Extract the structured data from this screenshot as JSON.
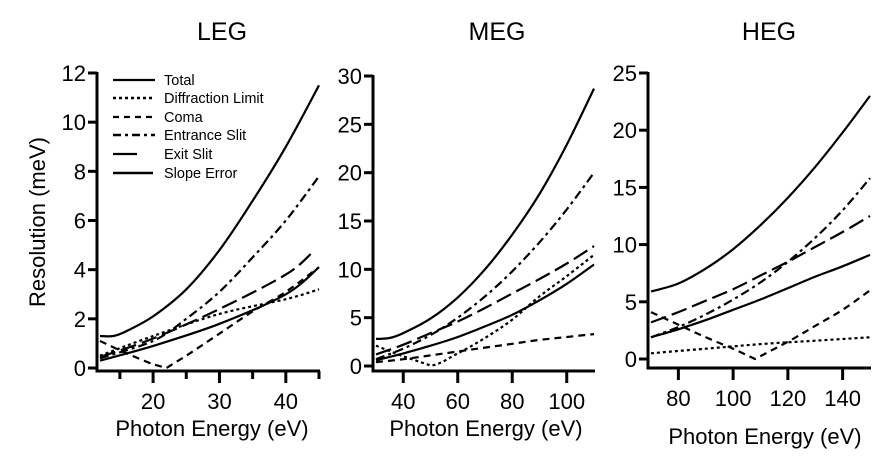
{
  "chart_data": [
    {
      "type": "line",
      "title": "LEG",
      "xlabel": "Photon Energy (eV)",
      "ylabel": "Resolution (meV)",
      "xlim": [
        12,
        45
      ],
      "ylim": [
        0,
        12
      ],
      "xticks": [
        20,
        30,
        40
      ],
      "xminor": [
        15,
        25,
        35,
        45
      ],
      "yticks": [
        0,
        2,
        4,
        6,
        8,
        10,
        12
      ],
      "legend": "top-left",
      "series": [
        {
          "name": "Total",
          "style": "solid",
          "x": [
            12,
            14,
            16,
            20,
            25,
            30,
            35,
            40,
            45
          ],
          "y": [
            1.3,
            1.3,
            1.5,
            2.1,
            3.2,
            4.8,
            6.8,
            9.0,
            11.5
          ]
        },
        {
          "name": "Diffraction Limit",
          "style": "dotted",
          "x": [
            12,
            20,
            30,
            40,
            45
          ],
          "y": [
            0.5,
            1.3,
            2.2,
            2.8,
            3.2
          ]
        },
        {
          "name": "Coma",
          "style": "dashed",
          "x": [
            12,
            16,
            20,
            22,
            25,
            30,
            35,
            40,
            45
          ],
          "y": [
            1.1,
            0.6,
            0.15,
            0.0,
            0.5,
            1.4,
            2.3,
            3.1,
            4.1
          ]
        },
        {
          "name": "Entrance Slit",
          "style": "dashdot",
          "x": [
            12,
            20,
            25,
            30,
            35,
            40,
            45
          ],
          "y": [
            0.4,
            1.1,
            2.0,
            3.1,
            4.5,
            6.0,
            7.8
          ]
        },
        {
          "name": "Exit Slit",
          "style": "longdash",
          "x": [
            12,
            20,
            30,
            40,
            44
          ],
          "y": [
            0.45,
            1.2,
            2.4,
            3.8,
            4.7
          ]
        },
        {
          "name": "Slope Error",
          "style": "solid-thin",
          "x": [
            12,
            20,
            30,
            40,
            45
          ],
          "y": [
            0.3,
            0.9,
            1.8,
            3.0,
            4.1
          ]
        }
      ]
    },
    {
      "type": "line",
      "title": "MEG",
      "xlabel": "Photon Energy (eV)",
      "ylabel": "",
      "xlim": [
        30,
        110
      ],
      "ylim": [
        0,
        30
      ],
      "xticks": [
        40,
        60,
        80,
        100
      ],
      "yticks": [
        0,
        5,
        10,
        15,
        20,
        25,
        30
      ],
      "series": [
        {
          "name": "Total",
          "style": "solid",
          "x": [
            30,
            35,
            40,
            50,
            60,
            70,
            80,
            90,
            100,
            110
          ],
          "y": [
            2.8,
            2.9,
            3.4,
            4.9,
            7.1,
            10.0,
            13.6,
            17.8,
            22.9,
            28.7
          ]
        },
        {
          "name": "Diffraction Limit",
          "style": "dotted",
          "x": [
            30,
            40,
            50,
            60,
            70,
            80,
            90,
            100,
            110
          ],
          "y": [
            2.1,
            1.0,
            0.05,
            1.3,
            2.9,
            4.8,
            7.2,
            9.3,
            11.5
          ]
        },
        {
          "name": "Coma",
          "style": "dashed",
          "x": [
            30,
            40,
            50,
            60,
            70,
            80,
            90,
            100,
            110
          ],
          "y": [
            0.4,
            0.7,
            1.1,
            1.5,
            1.9,
            2.3,
            2.7,
            3.0,
            3.3
          ]
        },
        {
          "name": "Entrance Slit",
          "style": "dashdot",
          "x": [
            30,
            40,
            50,
            60,
            70,
            80,
            90,
            100,
            110
          ],
          "y": [
            0.7,
            1.8,
            3.2,
            5.0,
            7.2,
            9.8,
            12.8,
            16.2,
            20.0
          ]
        },
        {
          "name": "Exit Slit",
          "style": "longdash",
          "x": [
            30,
            40,
            50,
            60,
            70,
            80,
            90,
            100,
            110
          ],
          "y": [
            1.2,
            2.2,
            3.4,
            4.6,
            6.0,
            7.5,
            9.0,
            10.6,
            12.4
          ]
        },
        {
          "name": "Slope Error",
          "style": "solid-thin",
          "x": [
            30,
            40,
            50,
            60,
            70,
            80,
            90,
            100,
            110
          ],
          "y": [
            0.6,
            1.3,
            2.1,
            3.0,
            4.1,
            5.3,
            6.8,
            8.5,
            10.5
          ]
        }
      ]
    },
    {
      "type": "line",
      "title": "HEG",
      "xlabel": "Photon Energy (eV)",
      "ylabel": "",
      "xlim": [
        70,
        150
      ],
      "ylim": [
        0,
        25
      ],
      "xticks": [
        80,
        100,
        120,
        140
      ],
      "yticks": [
        0,
        5,
        10,
        15,
        20,
        25
      ],
      "series": [
        {
          "name": "Total",
          "style": "solid",
          "x": [
            70,
            80,
            90,
            100,
            110,
            120,
            130,
            140,
            150
          ],
          "y": [
            5.9,
            6.6,
            7.9,
            9.6,
            11.7,
            14.1,
            16.8,
            19.8,
            23.0
          ]
        },
        {
          "name": "Diffraction Limit",
          "style": "dotted",
          "x": [
            70,
            90,
            110,
            130,
            150
          ],
          "y": [
            0.5,
            0.9,
            1.3,
            1.6,
            1.9
          ]
        },
        {
          "name": "Coma",
          "style": "dashed",
          "x": [
            70,
            80,
            90,
            100,
            108,
            120,
            130,
            140,
            150
          ],
          "y": [
            4.1,
            3.0,
            1.9,
            0.9,
            0.0,
            1.5,
            2.9,
            4.3,
            6.0
          ]
        },
        {
          "name": "Entrance Slit",
          "style": "dashdot",
          "x": [
            70,
            80,
            90,
            100,
            110,
            120,
            130,
            140,
            150
          ],
          "y": [
            1.9,
            2.8,
            3.9,
            5.2,
            6.7,
            8.5,
            10.6,
            13.0,
            15.8
          ]
        },
        {
          "name": "Exit Slit",
          "style": "longdash",
          "x": [
            70,
            80,
            90,
            100,
            110,
            120,
            130,
            140,
            150
          ],
          "y": [
            3.2,
            4.1,
            5.1,
            6.1,
            7.3,
            8.5,
            9.8,
            11.1,
            12.5
          ]
        },
        {
          "name": "Slope Error",
          "style": "solid-thin",
          "x": [
            70,
            80,
            90,
            100,
            110,
            120,
            130,
            140,
            150
          ],
          "y": [
            1.9,
            2.6,
            3.4,
            4.3,
            5.2,
            6.2,
            7.2,
            8.1,
            9.1
          ]
        }
      ]
    }
  ],
  "legend": {
    "entries": [
      "Total",
      "Diffraction Limit",
      "Coma",
      "Entrance Slit",
      "Exit Slit",
      "Slope Error"
    ]
  }
}
